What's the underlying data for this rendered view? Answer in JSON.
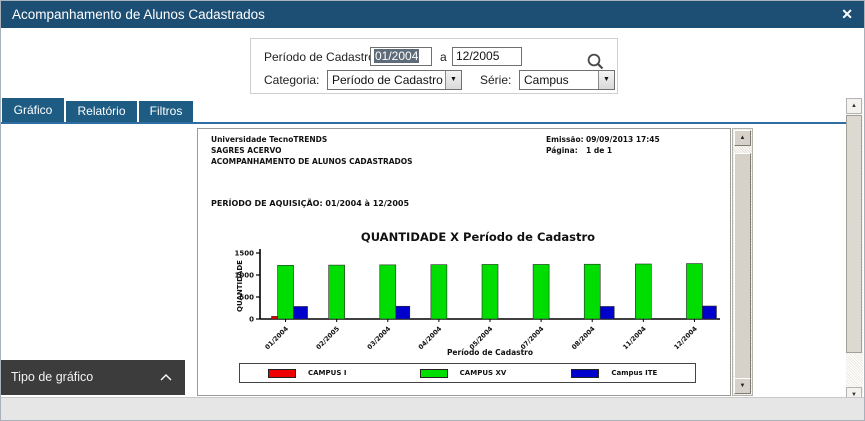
{
  "window": {
    "title": "Acompanhamento de Alunos Cadastrados"
  },
  "icons": {
    "close": "✕",
    "scroll_up": "▲",
    "scroll_down": "▼",
    "dropdown": "▼"
  },
  "filter_form": {
    "period_label": "Período de Cadastro",
    "period_from": "01/2004",
    "period_connector": "a",
    "period_to": "12/2005",
    "categoria_label": "Categoria:",
    "categoria_value": "Período de Cadastro",
    "serie_label": "Série:",
    "serie_value": "Campus"
  },
  "tabs": [
    {
      "label": "Gráfico",
      "active": true
    },
    {
      "label": "Relatório",
      "active": false
    },
    {
      "label": "Filtros",
      "active": false
    }
  ],
  "chart_type_panel": {
    "label": "Tipo de gráfico"
  },
  "report": {
    "org_line1": "Universidade TecnoTRENDS",
    "org_line2": "SAGRES ACERVO",
    "org_line3": "ACOMPANHAMENTO DE ALUNOS CADASTRADOS",
    "emissao_label": "Emissão:",
    "emissao_value": "09/09/2013 17:45",
    "pagina_label": "Página:",
    "pagina_value": "1 de 1",
    "period_line": "PERÍODO DE AQUISIÇÃO: 01/2004 à 12/2005"
  },
  "chart_data": {
    "type": "bar",
    "title": "QUANTIDADE X Período de Cadastro",
    "xlabel": "Período de Cadastro",
    "ylabel": "QUANTIDADE",
    "ylim": [
      0,
      1500
    ],
    "yticks": [
      0,
      500,
      1000,
      1500
    ],
    "grid": false,
    "legend_position": "bottom",
    "categories": [
      "01/2004",
      "02/2005",
      "03/2004",
      "04/2004",
      "05/2004",
      "07/2004",
      "08/2004",
      "11/2004",
      "12/2004"
    ],
    "series": [
      {
        "name": "CAMPUS I",
        "color": "#ee0000",
        "values": [
          60,
          0,
          0,
          0,
          0,
          0,
          0,
          0,
          0
        ]
      },
      {
        "name": "CAMPUS XV",
        "color": "#00dd00",
        "values": [
          1220,
          1225,
          1230,
          1235,
          1240,
          1240,
          1245,
          1250,
          1260
        ]
      },
      {
        "name": "Campus ITE",
        "color": "#0000cc",
        "values": [
          285,
          0,
          290,
          0,
          0,
          0,
          285,
          0,
          295
        ]
      }
    ]
  }
}
